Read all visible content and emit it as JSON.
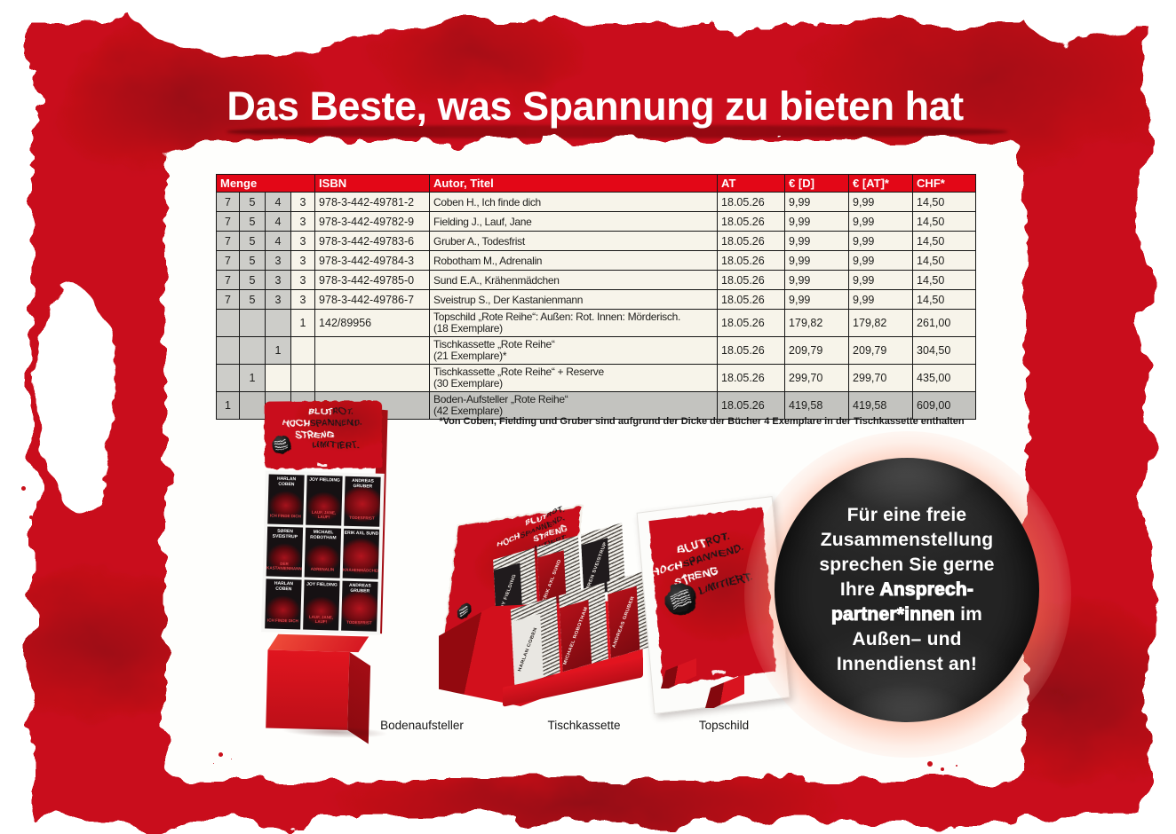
{
  "title": "Das Beste, was Spannung zu bieten hat",
  "table": {
    "headers": {
      "menge": "Menge",
      "isbn": "ISBN",
      "autor_titel": "Autor, Titel",
      "at": "AT",
      "eur_d": "€ [D]",
      "eur_at": "€ [AT]*",
      "chf": "CHF*"
    },
    "rows": [
      {
        "menge": [
          "7",
          "5",
          "4",
          "3"
        ],
        "gray_cols": 3,
        "row_gray": false,
        "isbn": "978-3-442-49781-2",
        "titel": "Coben H., Ich finde dich",
        "titel2": "",
        "at": "18.05.26",
        "eur_d": "9,99",
        "eur_at": "9,99",
        "chf": "14,50"
      },
      {
        "menge": [
          "7",
          "5",
          "4",
          "3"
        ],
        "gray_cols": 3,
        "row_gray": false,
        "isbn": "978-3-442-49782-9",
        "titel": "Fielding J., Lauf, Jane",
        "titel2": "",
        "at": "18.05.26",
        "eur_d": "9,99",
        "eur_at": "9,99",
        "chf": "14,50"
      },
      {
        "menge": [
          "7",
          "5",
          "4",
          "3"
        ],
        "gray_cols": 3,
        "row_gray": false,
        "isbn": "978-3-442-49783-6",
        "titel": "Gruber A., Todesfrist",
        "titel2": "",
        "at": "18.05.26",
        "eur_d": "9,99",
        "eur_at": "9,99",
        "chf": "14,50"
      },
      {
        "menge": [
          "7",
          "5",
          "3",
          "3"
        ],
        "gray_cols": 3,
        "row_gray": false,
        "isbn": "978-3-442-49784-3",
        "titel": "Robotham M., Adrenalin",
        "titel2": "",
        "at": "18.05.26",
        "eur_d": "9,99",
        "eur_at": "9,99",
        "chf": "14,50"
      },
      {
        "menge": [
          "7",
          "5",
          "3",
          "3"
        ],
        "gray_cols": 3,
        "row_gray": false,
        "isbn": "978-3-442-49785-0",
        "titel": "Sund E.A., Krähenmädchen",
        "titel2": "",
        "at": "18.05.26",
        "eur_d": "9,99",
        "eur_at": "9,99",
        "chf": "14,50"
      },
      {
        "menge": [
          "7",
          "5",
          "3",
          "3"
        ],
        "gray_cols": 3,
        "row_gray": false,
        "isbn": "978-3-442-49786-7",
        "titel": "Sveistrup S., Der Kastanienmann",
        "titel2": "",
        "at": "18.05.26",
        "eur_d": "9,99",
        "eur_at": "9,99",
        "chf": "14,50"
      },
      {
        "menge": [
          "",
          "",
          "",
          "1"
        ],
        "gray_cols": 3,
        "row_gray": false,
        "isbn": "142/89956",
        "titel": "Topschild „Rote Reihe“: Außen: Rot. Innen: Mörderisch.",
        "titel2": "(18 Exemplare)",
        "at": "18.05.26",
        "eur_d": "179,82",
        "eur_at": "179,82",
        "chf": "261,00"
      },
      {
        "menge": [
          "",
          "",
          "1",
          ""
        ],
        "gray_cols": 3,
        "row_gray": false,
        "isbn": "",
        "titel": "Tischkassette „Rote Reihe“",
        "titel2": "(21 Exemplare)*",
        "at": "18.05.26",
        "eur_d": "209,79",
        "eur_at": "209,79",
        "chf": "304,50"
      },
      {
        "menge": [
          "",
          "1",
          "",
          ""
        ],
        "gray_cols": 2,
        "row_gray": false,
        "isbn": "",
        "titel": "Tischkassette „Rote Reihe“ + Reserve",
        "titel2": "(30 Exemplare)",
        "at": "18.05.26",
        "eur_d": "299,70",
        "eur_at": "299,70",
        "chf": "435,00"
      },
      {
        "menge": [
          "1",
          "",
          "",
          ""
        ],
        "gray_cols": 4,
        "row_gray": true,
        "isbn": "",
        "titel": "Boden-Aufsteller „Rote Reihe“",
        "titel2": "(42 Exemplare)",
        "at": "18.05.26",
        "eur_d": "419,58",
        "eur_at": "419,58",
        "chf": "609,00"
      }
    ],
    "footnote": "*Von Coben, Fielding und Gruber sind aufgrund der Dicke der Bücher 4 Exemplare in der Tischkassette enthalten"
  },
  "displays": {
    "slogan": {
      "l1a": "BLUT",
      "l1b": "ROT.",
      "l2a": "HOCH",
      "l2b": "SPANNEND.",
      "l3": "STRENG",
      "l4": "LIMITIERT."
    },
    "books": [
      {
        "author": "HARLAN COBEN",
        "title": "ICH FINDE DICH"
      },
      {
        "author": "JOY FIELDING",
        "title": "LAUF, JANE, LAUF!"
      },
      {
        "author": "ANDREAS GRUBER",
        "title": "TODESFRIST"
      },
      {
        "author": "SØREN SVEISTRUP",
        "title": "DER KASTANIENMANN"
      },
      {
        "author": "MICHAEL ROBOTHAM",
        "title": "ADRENALIN"
      },
      {
        "author": "ERIK AXL SUND",
        "title": "KRÄHENMÄDCHEN"
      }
    ],
    "cassette": {
      "back_tier": [
        "JOY FIELDING",
        "ERIK AXL SUND",
        "SØREN SVEISTRUP"
      ],
      "front_tier": [
        "HARLAN COBEN",
        "MICHAEL ROBOTHAM",
        "ANDREAS GRUBER"
      ]
    },
    "labels": [
      "Bodenaufsteller",
      "Tischkassette",
      "Topschild"
    ]
  },
  "badge_circle": {
    "lines": [
      [
        {
          "t": "Für eine freie"
        }
      ],
      [
        {
          "t": "Zusammenstellung"
        }
      ],
      [
        {
          "t": "sprechen Sie gerne"
        }
      ],
      [
        {
          "t": "Ihre "
        },
        {
          "t": "Ansprech-",
          "b": true
        }
      ],
      [
        {
          "t": "partner*innen",
          "b": true
        },
        {
          "t": " im"
        }
      ],
      [
        {
          "t": "Außen– und"
        }
      ],
      [
        {
          "t": "Innendienst an!"
        }
      ]
    ]
  },
  "colors": {
    "brand_red": "#c9101a",
    "header_red": "#e30717",
    "cream": "#f7f4ea",
    "menge_gray": "#cdcdc9",
    "row_gray": "#c3c3bf",
    "circle_black": "#111111",
    "glow_orange": "#fb7446"
  }
}
